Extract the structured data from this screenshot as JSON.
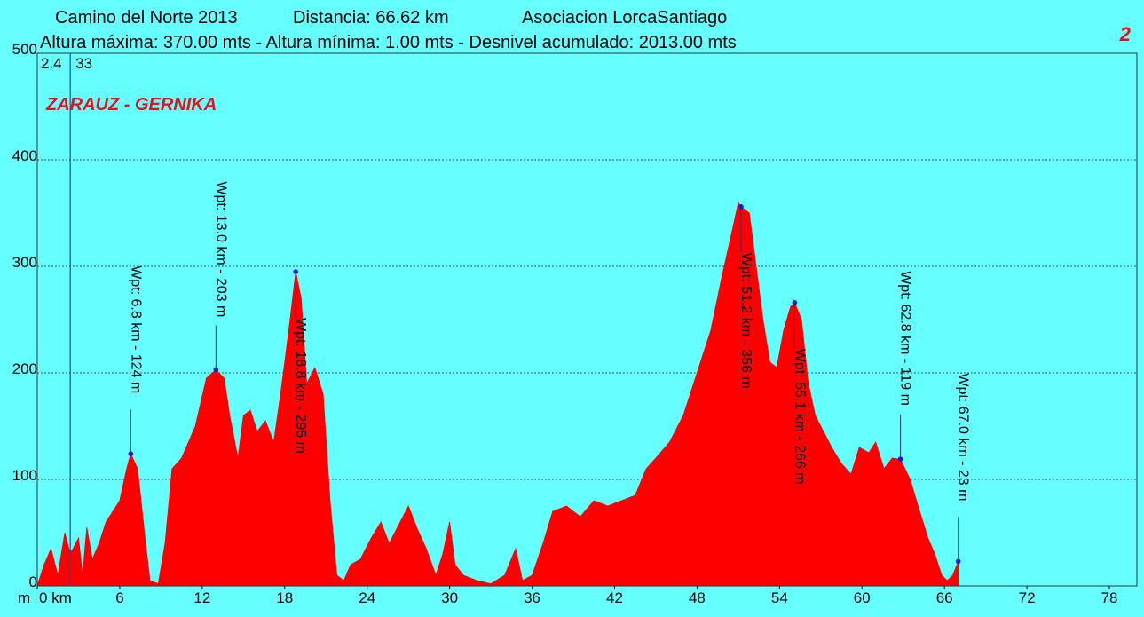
{
  "chart_data": {
    "type": "area",
    "title": "Camino del Norte 2013",
    "distance": "Distancia: 66.62 km",
    "organization": "Asociacion LorcaSantiago",
    "subtitle": "Altura máxima: 370.00 mts - Altura mínima: 1.00 mts - Desnivel acumulado: 2013.00 mts",
    "page_number": 2,
    "route": "ZARAUZ - GERNIKA",
    "y_unit": "m",
    "color": "#ff0000",
    "grid": true,
    "xlim": [
      0,
      80
    ],
    "xticks": [
      {
        "value": 0,
        "label": "0 km"
      },
      6,
      12,
      18,
      24,
      30,
      36,
      42,
      48,
      54,
      60,
      66,
      72,
      78
    ],
    "ylim": [
      0,
      500
    ],
    "yticks": [
      0,
      100,
      200,
      300,
      400,
      500
    ],
    "cursor": {
      "x": 2.4,
      "y": 33
    },
    "x": [
      0,
      0.5,
      1,
      1.5,
      2,
      2.4,
      3,
      3.3,
      3.6,
      4,
      4.5,
      5,
      5.5,
      6,
      6.5,
      6.8,
      7.3,
      7.8,
      8.2,
      8.8,
      9.3,
      9.8,
      10.5,
      11.5,
      12.3,
      13,
      13.6,
      14,
      14.6,
      15,
      15.5,
      16,
      16.6,
      17.2,
      17.7,
      18.3,
      18.8,
      19.2,
      19.6,
      20.2,
      20.8,
      21.3,
      21.8,
      22.3,
      22.8,
      23.5,
      24.3,
      25,
      25.6,
      26.2,
      27,
      27.6,
      28.3,
      29,
      29.5,
      30,
      30.4,
      31,
      32,
      33,
      34,
      34.8,
      35.3,
      36,
      36.8,
      37.5,
      38.5,
      39.5,
      40.5,
      41.5,
      42.5,
      43.5,
      44.3,
      45,
      46,
      47,
      48,
      49,
      49.8,
      50.5,
      51,
      51.2,
      51.8,
      52.3,
      52.8,
      53.3,
      53.8,
      54.3,
      54.8,
      55.1,
      55.6,
      56.1,
      56.6,
      57.2,
      57.8,
      58.5,
      59.2,
      59.8,
      60.5,
      61,
      61.6,
      62.2,
      62.8,
      63.5,
      64.2,
      64.8,
      65.3,
      65.8,
      66.2,
      66.6,
      67
    ],
    "values": [
      0,
      20,
      35,
      10,
      50,
      30,
      45,
      10,
      55,
      25,
      40,
      60,
      70,
      80,
      110,
      124,
      110,
      50,
      5,
      2,
      40,
      110,
      120,
      150,
      195,
      203,
      195,
      160,
      120,
      160,
      165,
      145,
      155,
      135,
      180,
      240,
      295,
      270,
      190,
      205,
      180,
      80,
      10,
      5,
      20,
      25,
      45,
      60,
      40,
      55,
      75,
      55,
      35,
      10,
      30,
      60,
      20,
      10,
      5,
      2,
      10,
      35,
      5,
      10,
      40,
      70,
      75,
      65,
      80,
      75,
      80,
      85,
      110,
      120,
      135,
      160,
      200,
      240,
      290,
      330,
      360,
      356,
      350,
      300,
      250,
      210,
      205,
      240,
      262,
      266,
      250,
      190,
      160,
      145,
      130,
      115,
      105,
      130,
      125,
      135,
      110,
      120,
      119,
      100,
      70,
      45,
      30,
      10,
      5,
      10,
      23
    ],
    "waypoints": [
      {
        "x": 6.8,
        "y": 124,
        "label": "Wpt: 6.8 km - 124 m"
      },
      {
        "x": 13.0,
        "y": 203,
        "label": "Wpt: 13.0 km - 203 m"
      },
      {
        "x": 18.8,
        "y": 295,
        "label": "Wpt: 18.8 km - 295 m"
      },
      {
        "x": 51.2,
        "y": 356,
        "label": "Wpt: 51.2 km - 356 m"
      },
      {
        "x": 55.1,
        "y": 266,
        "label": "Wpt: 55.1 km - 266 m"
      },
      {
        "x": 62.8,
        "y": 119,
        "label": "Wpt: 62.8 km - 119 m"
      },
      {
        "x": 67.0,
        "y": 23,
        "label": "Wpt: 67.0 km - 23 m"
      }
    ]
  }
}
